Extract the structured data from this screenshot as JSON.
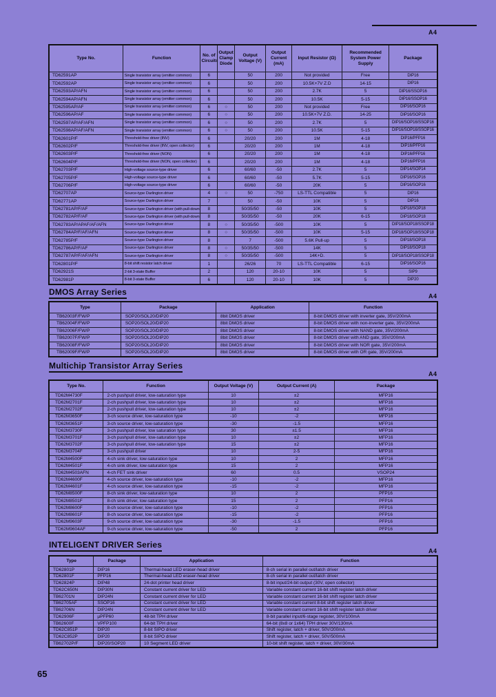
{
  "page": {
    "page_number": "65",
    "corner_label": "A4"
  },
  "sections": {
    "dmos": {
      "title": "DMOS Array Series",
      "corner_label": "A4"
    },
    "multichip": {
      "title": "Multichip Transistor Array Series",
      "corner_label": "A4"
    },
    "intelligent": {
      "title": "INTELIGENT DRIVER Series",
      "corner_label": "A4"
    }
  },
  "tables": {
    "main": {
      "headers": [
        "Type No.",
        "Function",
        "No. of Circuits",
        "Output Clamp Diode",
        "Output Voltage (V)",
        "Output Current (mA)",
        "Input Resistor (Ω)",
        "Recommended System Power Supply",
        "Package"
      ],
      "rows": [
        [
          "TD62591AP",
          "Single transistor array (emitter common)",
          "6",
          "",
          "50",
          "200",
          "Not provided",
          "Free",
          "DIP16"
        ],
        [
          "TD62592AP",
          "Single transistor array (emitter common)",
          "6",
          "",
          "50",
          "200",
          "10.5K+7V Z.D",
          "14-15",
          "DIP16"
        ],
        [
          "TD62593AP/AFN",
          "Single transistor array (emitter common)",
          "6",
          "",
          "50",
          "200",
          "2.7K",
          "5",
          "DIP16/SSOP16"
        ],
        [
          "TD62594AP/AFN",
          "Single transistor array (emitter common)",
          "6",
          "",
          "50",
          "200",
          "10.5K",
          "5-15",
          "DIP16/SSOP16"
        ],
        [
          "TD62595AP/AF",
          "Single transistor array (emitter common)",
          "6",
          "○",
          "50",
          "200",
          "Not provided",
          "Free",
          "DIP16/SOP16"
        ],
        [
          "TD62596AP/AF",
          "Single transistor array (emitter common)",
          "6",
          "○",
          "50",
          "200",
          "10.5K+7V Z.D.",
          "14-25",
          "DIP16/SOP16"
        ],
        [
          "TD62597AP/AF/AFN",
          "Single transistor array (emitter common)",
          "6",
          "○",
          "50",
          "200",
          "2.7K",
          "5",
          "DIP16/SOP16/SSOP16"
        ],
        [
          "TD62598AP/AF/AFN",
          "Single transistor array (emitter common)",
          "6",
          "○",
          "50",
          "200",
          "10.5K",
          "5-15",
          "DIP16/SOP16/SSOP16"
        ],
        [
          "TD62601P/F",
          "Threshold-free driver (INV)",
          "6",
          "",
          "20/20",
          "200",
          "1M",
          "4-18",
          "DIP16/PFP16"
        ],
        [
          "TD62602P/F",
          "Threshold-free driver (INV, open collector)",
          "6",
          "",
          "20/20",
          "200",
          "1M",
          "4-18",
          "DIP16/PFP16"
        ],
        [
          "TD62603P/F",
          "Threshold-free driver (NON)",
          "6",
          "",
          "20/20",
          "200",
          "1M",
          "4-18",
          "DIP16/PFP16"
        ],
        [
          "TD62604P/F",
          "Threshold-free driver (NON, open collector)",
          "6",
          "",
          "20/20",
          "200",
          "1M",
          "4-18",
          "DIP16/PFP16"
        ],
        [
          "TD62703P/F",
          "High-voltage source-type driver",
          "6",
          "",
          "60/60",
          "-50",
          "2.7K",
          "5",
          "DIP14/SOP14"
        ],
        [
          "TD62705P/F",
          "High-voltage source-type driver",
          "6",
          "",
          "60/60",
          "-50",
          "5.7K",
          "5-15",
          "DIP16/SOP16"
        ],
        [
          "TD62706P/F",
          "High-voltage source-type driver",
          "6",
          "",
          "60/60",
          "-50",
          "20K",
          "5",
          "DIP16/SOP16"
        ],
        [
          "TD62707AP",
          "Source-type Darlington driver",
          "4",
          "○",
          "50",
          "-750",
          "LS-TTL Compatible",
          "5",
          "DIP16"
        ],
        [
          "TD62771AP",
          "Source-type Darlington driver",
          "7",
          "",
          "50",
          "-50",
          "10K",
          "5",
          "DIP16"
        ],
        [
          "TD62781AP/F/AF",
          "Source-type Darlington driver (with pull-down resistor)",
          "8",
          "",
          "50/35/50",
          "-50",
          "10K",
          "5",
          "DIP18/SOP18"
        ],
        [
          "TD62782AP/F/AF",
          "Source-type Darlington driver (with pull-down resistor)",
          "8",
          "",
          "50/35/50",
          "-50",
          "20K",
          "6-15",
          "DIP18/SOP18"
        ],
        [
          "TD62783AP/APAF/AF/AFN",
          "Source-type Darlington driver",
          "8",
          "○",
          "50/35/50",
          "-500",
          "10K",
          "5",
          "DIP18/SOP18/SSOP18"
        ],
        [
          "TD62784AP/F/AF/AFN",
          "Source-type Darlington driver",
          "8",
          "○",
          "50/35/50",
          "-500",
          "10K",
          "5-15",
          "DIP18/SOP18/SSOP18"
        ],
        [
          "TD62785P/F",
          "Source-type Darlington driver",
          "8",
          "",
          "7",
          "-500",
          "5.6K Pull-up",
          "5",
          "DIP18/SOP18"
        ],
        [
          "TD62786AP/F/AF",
          "Source-type Darlington driver",
          "8",
          "○",
          "50/35/50",
          "-500",
          "14K",
          "5",
          "DIP18/SOP18"
        ],
        [
          "TD62787AP/F/AF/AFN",
          "Source-type Darlington driver",
          "8",
          "○",
          "50/35/50",
          "-500",
          "14K+D.",
          "5",
          "DIP18/SOP18/SSOP18"
        ],
        [
          "TD62801P/F",
          "8-bit shift resistor latch driver",
          "1",
          "",
          "26/26",
          "70",
          "LS-TTL Compatible",
          "6-15",
          "DIP16/SOP16"
        ],
        [
          "TD62921S",
          "2-bit 3-state Buffer",
          "2",
          "",
          "120",
          "20-10",
          "10K",
          "5",
          "SIP9"
        ],
        [
          "TD62981P",
          "8-bit 3-state Buffer",
          "6",
          "",
          "120",
          "20-10",
          "10K",
          "5",
          "DIP20"
        ]
      ]
    },
    "dmos": {
      "headers": [
        "Type",
        "Package",
        "Application",
        "Function"
      ],
      "rows": [
        [
          "TB62003F/FW/P",
          "SOP20/SOL20/DIP20",
          "8bit DMOS driver",
          "8-bit DMOS driver with inverter gate, 35V/200mA"
        ],
        [
          "TB62004F/FW/P",
          "SOP20/SOL20/DIP20",
          "8bit DMOS driver",
          "8-bit DMOS driver with non-inverter gate, 35V/200mA"
        ],
        [
          "TB62006F/FW/P",
          "SOP20/SOL20/DIP20",
          "8bit DMOS driver",
          "8-bit DMOS driver with NAND gate, 35V/200mA"
        ],
        [
          "TB62007F/FW/P",
          "SOP20/SOL20/DIP20",
          "8bit DMOS driver",
          "8-bit DMOS driver with AND gate, 35V/200mA"
        ],
        [
          "TB62008F/FW/P",
          "SOP20/SOL20/DIP20",
          "8bit DMOS driver",
          "8-bit DMOS driver with NOR gate, 35V/200mA"
        ],
        [
          "TB62009F/FW/P",
          "SOP20/SOL20/DIP20",
          "8bit DMOS driver",
          "8-bit DMOS driver with OR gate, 35V/200mA"
        ]
      ]
    },
    "multichip": {
      "headers": [
        "Type No.",
        "Function",
        "Output Voltage (V)",
        "Output Current (A)",
        "Package"
      ],
      "rows": [
        [
          "TD62M4730F",
          "2-ch pushpull driver, low-saturation type",
          "10",
          "±2",
          "MFP16"
        ],
        [
          "TD62M2701F",
          "2-ch pushpull driver, low-saturation type",
          "10",
          "±2",
          "MFP16"
        ],
        [
          "TD62M2702F",
          "2-ch pushpull driver, low-saturation type",
          "10",
          "±2",
          "MFP16"
        ],
        [
          "TD62M3650F",
          "3-ch source driver, low-saturation type",
          "-10",
          "-2",
          "MFP16"
        ],
        [
          "TD62M3651F",
          "3-ch source driver, low-saturation type",
          "-30",
          "-1.5",
          "MFP16"
        ],
        [
          "TD62M3730F",
          "3-ch pushpull driver, low saturation type",
          "30",
          "±1.5",
          "MFP16"
        ],
        [
          "TD62M3701F",
          "3-ch pushpull driver, low-saturation type",
          "10",
          "±2",
          "MFP16"
        ],
        [
          "TD62M3702F",
          "3-ch pushpull driver, low-saturation type",
          "15",
          "±2",
          "MFP16"
        ],
        [
          "TD62M3704F",
          "3-ch pushpull driver",
          "10",
          "2-5",
          "MFP16"
        ],
        [
          "TD62M4500F",
          "4-ch sink driver, low-saturation type",
          "10",
          "2",
          "MFP16"
        ],
        [
          "TD62M4501F",
          "4-ch sink driver, low-saturation type",
          "15",
          "2",
          "MFP16"
        ],
        [
          "TD62M4503AFN",
          "4-ch FET sink driver",
          "60",
          "0.5",
          "VSOP24"
        ],
        [
          "TD62M4600F",
          "4-ch source driver, low-saturation type",
          "-10",
          "-2",
          "MFP16"
        ],
        [
          "TD62M4601F",
          "4-ch source driver, low-saturation type",
          "-15",
          "-2",
          "MFP16"
        ],
        [
          "TD62M8500F",
          "8-ch sink driver, low-saturation type",
          "10",
          "2",
          "PFP16"
        ],
        [
          "TD62M8501F",
          "8-ch sink driver, low-saturation type",
          "15",
          "2",
          "PFP16"
        ],
        [
          "TD62M8600F",
          "8-ch source driver, low-saturation type",
          "-10",
          "-2",
          "PFP16"
        ],
        [
          "TD62M8601F",
          "8-ch source driver, low-saturation type",
          "-15",
          "-2",
          "PFP16"
        ],
        [
          "TD62M9603F",
          "9-ch source driver, low-saturation type",
          "-30",
          "-1.5",
          "PFP16"
        ],
        [
          "TD62M9604AF",
          "9-ch source driver, low-saturation type",
          "-50",
          "2",
          "PFP16"
        ]
      ]
    },
    "intelligent": {
      "headers": [
        "Type",
        "Package",
        "Application",
        "Function"
      ],
      "rows": [
        [
          "TD62801P",
          "DIP16",
          "Thermal-head LED eraser-head driver",
          "8-ch serial in parallel out/latch driver"
        ],
        [
          "TD62801F",
          "PFP16",
          "Thermal-head LED eraser-head driver",
          "8-ch serial in parallel out/latch driver"
        ],
        [
          "TD62824P",
          "DIP48",
          "24-dot printer head driver",
          "8-bit input/24-bit output (30V, open collector)"
        ],
        [
          "TD62C650N",
          "DIP30N",
          "Constant current driver for LED",
          "Variable constant current 16-bit shift register latch driver"
        ],
        [
          "TB62701N",
          "DIP24N",
          "Constant current driver for LED",
          "Variable constant current 16-bit shift register latch driver"
        ],
        [
          "TB62705AF",
          "SSOP16",
          "Constant current driver for LED",
          "Variable constant current 8-bit shift register latch driver"
        ],
        [
          "TB62706N",
          "DIP24N",
          "Constant current driver for LED",
          "Variable constant current 16-bit shift register latch driver"
        ],
        [
          "TD62906F",
          "µPFP60",
          "48-bit TPH driver",
          "8-bit parallel input/6-stage register, 30V/100mA"
        ],
        [
          "TB62600F",
          "VPFP100",
          "64-bit TPH driver",
          "64-bit (8x8 or 1x64) TPH driver 30V/130mA"
        ],
        [
          "TD62C851P",
          "DIP20",
          "8-bit SIPO driver",
          "Shift register, latch + driver, 50V/200mA"
        ],
        [
          "TD62C852P",
          "DIP20",
          "8-bit SIPO driver",
          "Shift register, latch + driver, 50V/500mA"
        ],
        [
          "TB62702P/F",
          "DIP20/SOP20",
          "10 Segment LED driver",
          "10-bit shift register, latch + driver, 30V/30mA"
        ]
      ]
    }
  }
}
